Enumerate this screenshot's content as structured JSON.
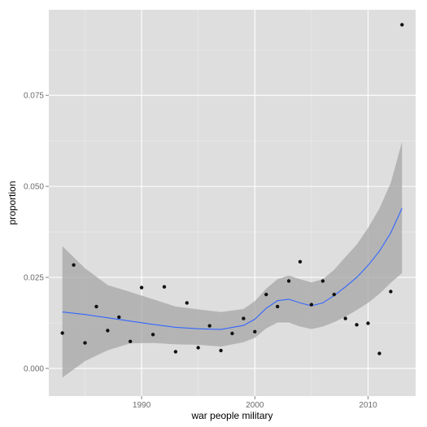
{
  "chart_data": {
    "type": "scatter",
    "title": "",
    "xlabel": "war people military",
    "ylabel": "proportion",
    "xlim": [
      1981.8,
      2014.2
    ],
    "ylim": [
      -0.0076,
      0.0985
    ],
    "x_ticks": [
      1990,
      2000,
      2010
    ],
    "x_tick_labels": [
      "1990",
      "2000",
      "2010"
    ],
    "y_ticks": [
      0.0,
      0.025,
      0.05,
      0.075
    ],
    "y_tick_labels": [
      "0.000",
      "0.025",
      "0.050",
      "0.075"
    ],
    "grid": true,
    "legend": "none",
    "points": {
      "x": [
        1983,
        1984,
        1985,
        1986,
        1987,
        1988,
        1989,
        1990,
        1991,
        1992,
        1993,
        1994,
        1995,
        1996,
        1997,
        1998,
        1999,
        2000,
        2001,
        2002,
        2003,
        2004,
        2005,
        2006,
        2007,
        2008,
        2009,
        2010,
        2011,
        2012,
        2013
      ],
      "y": [
        0.0097,
        0.0284,
        0.007,
        0.017,
        0.0104,
        0.0141,
        0.0074,
        0.0222,
        0.0093,
        0.0224,
        0.0046,
        0.018,
        0.0057,
        0.0117,
        0.0049,
        0.0096,
        0.0137,
        0.0101,
        0.0203,
        0.017,
        0.024,
        0.0293,
        0.0175,
        0.024,
        0.0203,
        0.0137,
        0.012,
        0.0124,
        0.0041,
        0.0211,
        0.0944
      ]
    },
    "smooth": {
      "x": [
        1983,
        1985,
        1987,
        1989,
        1991,
        1993,
        1995,
        1997,
        1999,
        2000,
        2001,
        2002,
        2003,
        2004,
        2005,
        2006,
        2007,
        2008,
        2009,
        2010,
        2011,
        2012,
        2013
      ],
      "y": [
        0.0155,
        0.0148,
        0.0139,
        0.013,
        0.0121,
        0.0113,
        0.0109,
        0.0107,
        0.0118,
        0.0135,
        0.0165,
        0.0186,
        0.019,
        0.018,
        0.0172,
        0.018,
        0.02,
        0.0224,
        0.025,
        0.0283,
        0.0322,
        0.0372,
        0.044
      ],
      "lower": [
        -0.0025,
        0.002,
        0.005,
        0.0069,
        0.007,
        0.0066,
        0.0065,
        0.006,
        0.0072,
        0.0084,
        0.011,
        0.0126,
        0.0126,
        0.0115,
        0.0108,
        0.0115,
        0.0127,
        0.0142,
        0.016,
        0.018,
        0.0205,
        0.0235,
        0.0262
      ],
      "upper": [
        0.0336,
        0.0275,
        0.0229,
        0.021,
        0.019,
        0.017,
        0.0162,
        0.0155,
        0.0163,
        0.0185,
        0.0219,
        0.0245,
        0.0255,
        0.0245,
        0.0236,
        0.0245,
        0.0271,
        0.0306,
        0.034,
        0.0386,
        0.0439,
        0.0509,
        0.0623
      ]
    },
    "colors": {
      "panel": "#dedede",
      "grid_major": "#ffffff",
      "grid_minor": "#ececec",
      "points": "#111111",
      "smooth_line": "#3366ff",
      "ribbon": "#a6a6a6",
      "tick_label": "#6b6b6b",
      "tick_mark": "#7f7f7f"
    }
  }
}
